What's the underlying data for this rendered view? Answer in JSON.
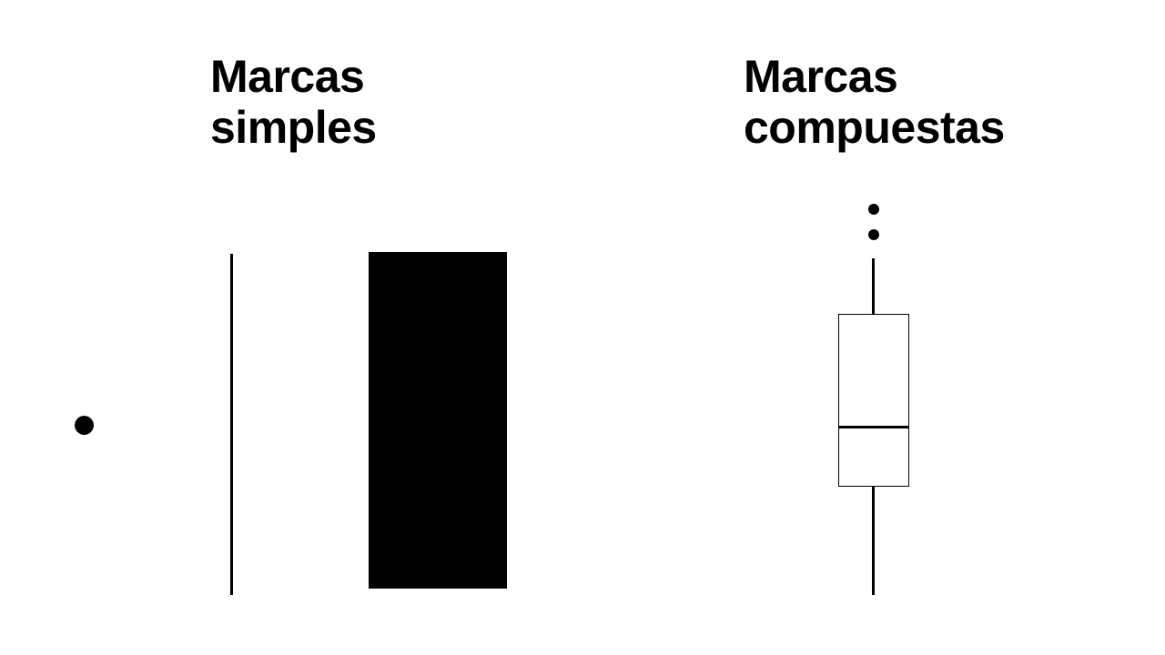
{
  "headings": {
    "simple": {
      "line1": "Marcas",
      "line2": "simples"
    },
    "compound": {
      "line1": "Marcas",
      "line2": "compuestas"
    }
  },
  "marks": {
    "simple": [
      "point",
      "line",
      "rectangle"
    ],
    "compound": [
      "boxplot"
    ]
  },
  "colors": {
    "mark": "#000000",
    "background": "#ffffff"
  }
}
